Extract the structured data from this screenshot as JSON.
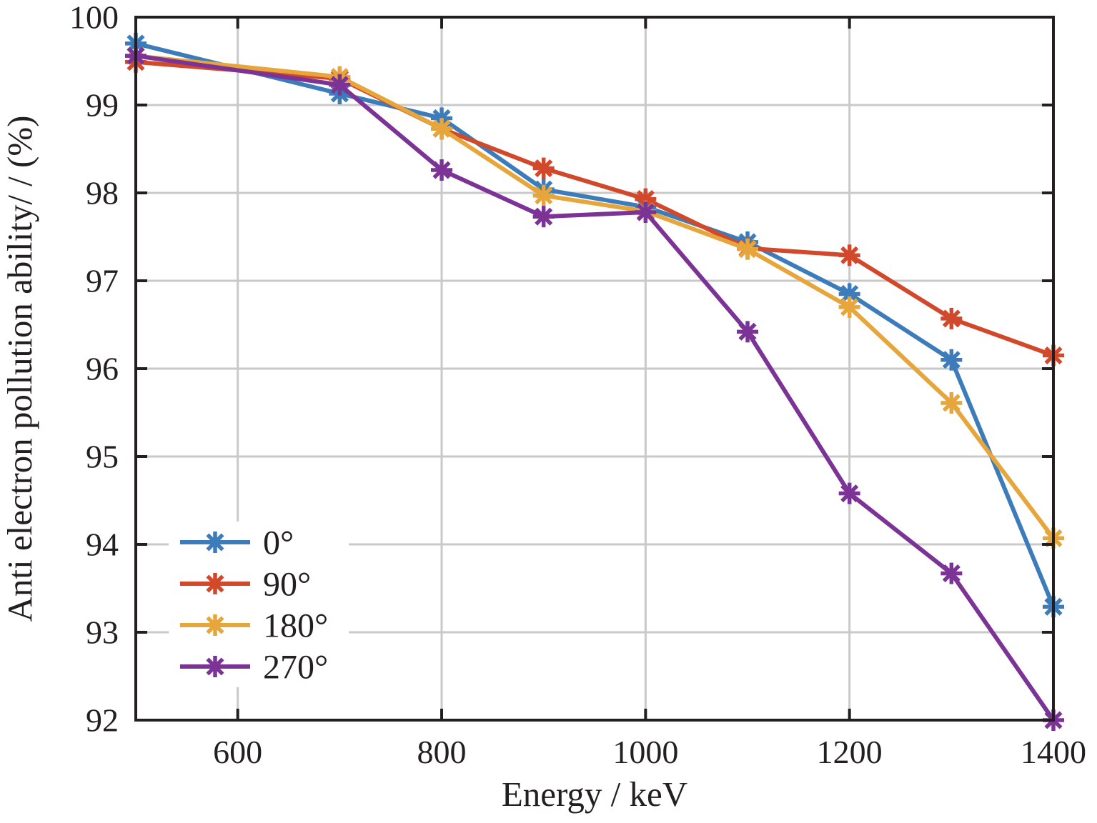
{
  "figure": {
    "background": "#ffffff",
    "axis_color": "#231f20",
    "grid_color": "#c9c9c9",
    "text_color": "#231f20"
  },
  "chart_data": {
    "type": "line",
    "title": "",
    "xlabel": "Energy / keV",
    "ylabel": "Anti electron pollution ability/ / (%)",
    "xlim": [
      500,
      1400
    ],
    "ylim": [
      92,
      100
    ],
    "x_ticks": [
      600,
      800,
      1000,
      1200,
      1400
    ],
    "y_ticks": [
      92,
      93,
      94,
      95,
      96,
      97,
      98,
      99,
      100
    ],
    "grid": true,
    "marker": "asterisk",
    "legend": {
      "position": "lower-left",
      "frame": false
    },
    "x": [
      500,
      700,
      800,
      900,
      1000,
      1100,
      1200,
      1300,
      1400
    ],
    "series": [
      {
        "name": "0°",
        "color": "#3D7CBB",
        "values": [
          99.7,
          99.13,
          98.85,
          98.04,
          97.84,
          97.44,
          96.85,
          96.1,
          93.29
        ]
      },
      {
        "name": "90°",
        "color": "#D1492A",
        "values": [
          99.49,
          99.3,
          98.73,
          98.28,
          97.93,
          97.37,
          97.29,
          96.57,
          96.15
        ]
      },
      {
        "name": "180°",
        "color": "#E6A63C",
        "values": [
          99.56,
          99.32,
          98.73,
          97.97,
          97.79,
          97.36,
          96.7,
          95.61,
          94.07
        ]
      },
      {
        "name": "270°",
        "color": "#7C3396",
        "values": [
          99.56,
          99.23,
          98.26,
          97.73,
          97.78,
          96.42,
          94.58,
          93.67,
          92.0
        ]
      }
    ]
  }
}
